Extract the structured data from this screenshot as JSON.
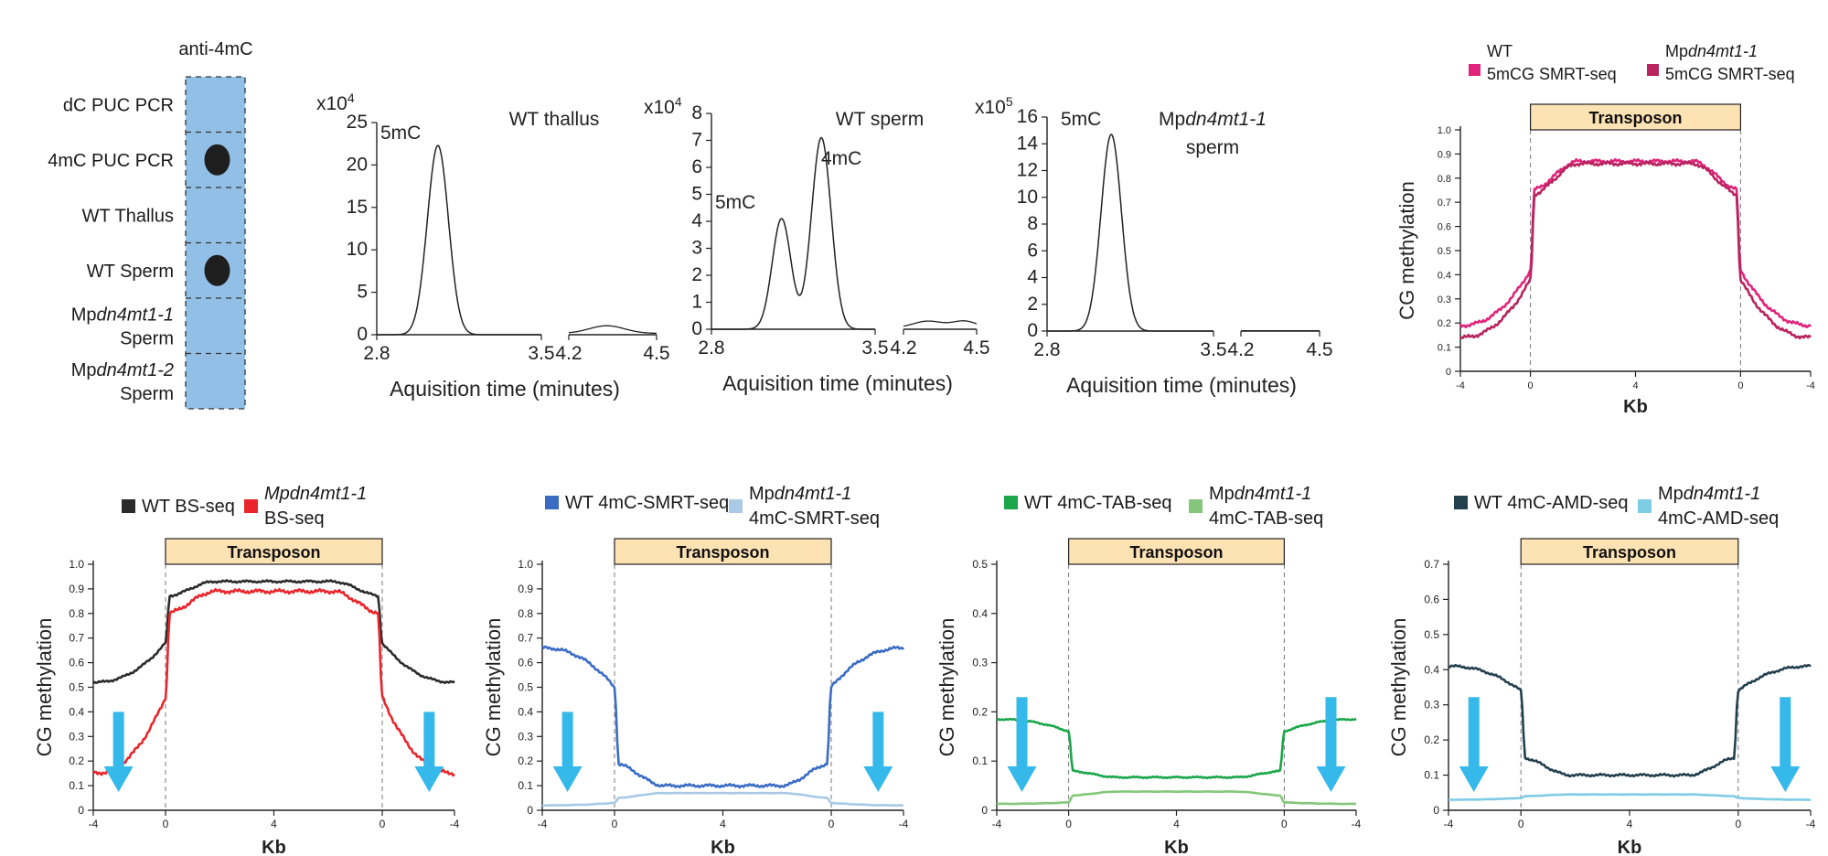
{
  "panel_a": {
    "title": "anti-4mC",
    "rows": [
      {
        "label_lines": [
          {
            "pre": "dC PUC PCR",
            "ital": "",
            "post": ""
          }
        ],
        "spot": false
      },
      {
        "label_lines": [
          {
            "pre": "4mC PUC PCR",
            "ital": "",
            "post": ""
          }
        ],
        "spot": true
      },
      {
        "label_lines": [
          {
            "pre": "WT Thallus",
            "ital": "",
            "post": ""
          }
        ],
        "spot": false
      },
      {
        "label_lines": [
          {
            "pre": "WT Sperm",
            "ital": "",
            "post": ""
          }
        ],
        "spot": true
      },
      {
        "label_lines": [
          {
            "pre": "Mp",
            "ital": "dn4mt1-1",
            "post": ""
          },
          {
            "pre": "Sperm",
            "ital": "",
            "post": ""
          }
        ],
        "spot": false
      },
      {
        "label_lines": [
          {
            "pre": "Mp",
            "ital": "dn4mt1-2",
            "post": ""
          },
          {
            "pre": "Sperm",
            "ital": "",
            "post": ""
          }
        ],
        "spot": false
      }
    ],
    "colors": {
      "membrane": "#92bfe6",
      "spot": "#1e1e1e"
    }
  },
  "chart_data": [
    {
      "type": "line",
      "panel": "LC-MS WT thallus",
      "title": "WT thallus",
      "multiplier": "x10",
      "multiplier_exp": "4",
      "xlabel": "Aquisition time (minutes)",
      "ylim": [
        0,
        25
      ],
      "yticks": [
        0,
        5,
        10,
        15,
        20,
        25
      ],
      "x_segments": [
        [
          2.8,
          3.5
        ],
        [
          4.2,
          4.5
        ]
      ],
      "xtick_labels": [
        "2.8",
        "3.5",
        "4.2",
        "4.5"
      ],
      "peaks": [
        {
          "x": 3.06,
          "y": 22.3,
          "width": 0.045
        }
      ],
      "segment2_bumps": [
        {
          "x": 4.33,
          "y": 0.9,
          "width": 0.06
        }
      ],
      "annotations": [
        {
          "text": "5mC",
          "color": "#e8394a"
        }
      ],
      "line_color": "#222222"
    },
    {
      "type": "line",
      "panel": "LC-MS WT sperm",
      "title": "WT sperm",
      "multiplier": "x10",
      "multiplier_exp": "4",
      "xlabel": "Aquisition time (minutes)",
      "ylim": [
        0,
        8
      ],
      "yticks": [
        0,
        1,
        2,
        3,
        4,
        5,
        6,
        7,
        8
      ],
      "x_segments": [
        [
          2.8,
          3.5
        ],
        [
          4.2,
          4.5
        ]
      ],
      "xtick_labels": [
        "2.8",
        "3.5",
        "4.2",
        "4.5"
      ],
      "peaks": [
        {
          "x": 3.1,
          "y": 4.1,
          "width": 0.04
        },
        {
          "x": 3.27,
          "y": 7.1,
          "width": 0.042
        }
      ],
      "segment2_bumps": [
        {
          "x": 4.3,
          "y": 0.25,
          "width": 0.06
        },
        {
          "x": 4.45,
          "y": 0.25,
          "width": 0.05
        }
      ],
      "annotations": [
        {
          "text": "5mC",
          "color": "#e8394a"
        },
        {
          "text": "4mC",
          "color": "#2d6cb5"
        }
      ],
      "line_color": "#222222"
    },
    {
      "type": "line",
      "panel": "LC-MS Mpdn4mt1-1 sperm",
      "title_pre": "Mp",
      "title_ital": "dn4mt1-1",
      "title_line2": "sperm",
      "multiplier": "x10",
      "multiplier_exp": "5",
      "xlabel": "Aquisition time (minutes)",
      "ylim": [
        0,
        16
      ],
      "yticks": [
        0,
        2,
        4,
        6,
        8,
        10,
        12,
        14,
        16
      ],
      "x_segments": [
        [
          2.8,
          3.5
        ],
        [
          4.2,
          4.5
        ]
      ],
      "xtick_labels": [
        "2.8",
        "3.5",
        "4.2",
        "4.5"
      ],
      "peaks": [
        {
          "x": 3.07,
          "y": 14.7,
          "width": 0.043
        }
      ],
      "segment2_bumps": [],
      "annotations": [
        {
          "text": "5mC",
          "color": "#e8394a"
        }
      ],
      "line_color": "#222222"
    },
    {
      "type": "line",
      "panel": "5mCG SMRT-seq metaplot",
      "ylabel": "CG methylation",
      "xlabel": "Kb",
      "transposon_label": "Transposon",
      "ylim": [
        0,
        1.0
      ],
      "yticks": [
        "0",
        "0.1",
        "0.2",
        "0.3",
        "0.4",
        "0.5",
        "0.6",
        "0.7",
        "0.8",
        "0.9",
        "1.0"
      ],
      "xtick_labels": [
        "-4",
        "0",
        "4",
        "0",
        "-4"
      ],
      "series": [
        {
          "name_line1": "WT",
          "name_line2": "5mCG SMRT-seq",
          "name_ital": "",
          "color": "#e0247c",
          "flank_out": 0.19,
          "flank_in": 0.42,
          "body_edge": 0.75,
          "body_mid": 0.87
        },
        {
          "name_line1": "Mp",
          "name_ital": "dn4mt1-1",
          "name_line2": "5mCG SMRT-seq",
          "color": "#b8245e",
          "flank_out": 0.14,
          "flank_in": 0.38,
          "body_edge": 0.73,
          "body_mid": 0.86
        }
      ],
      "arrows": false
    },
    {
      "type": "line",
      "panel": "BS-seq metaplot",
      "ylabel": "CG methylation",
      "xlabel": "Kb",
      "transposon_label": "Transposon",
      "ylim": [
        0,
        1.0
      ],
      "yticks": [
        "0",
        "0.1",
        "0.2",
        "0.3",
        "0.4",
        "0.5",
        "0.6",
        "0.7",
        "0.8",
        "0.9",
        "1.0"
      ],
      "xtick_labels": [
        "-4",
        "0",
        "4",
        "0",
        "-4"
      ],
      "series": [
        {
          "name_line1": "WT BS-seq",
          "name_ital": "",
          "name_line2": "",
          "color": "#2b2b2b",
          "flank_out": 0.52,
          "flank_in": 0.68,
          "body_edge": 0.87,
          "body_mid": 0.93
        },
        {
          "name_line1": "",
          "name_ital": "Mpdn4mt1-1",
          "name_line2": "BS-seq",
          "color": "#e8262b",
          "flank_out": 0.15,
          "flank_in": 0.46,
          "body_edge": 0.8,
          "body_mid": 0.89
        }
      ],
      "arrows": true
    },
    {
      "type": "line",
      "panel": "4mC-SMRT-seq metaplot",
      "ylabel": "CG methylation",
      "xlabel": "Kb",
      "transposon_label": "Transposon",
      "ylim": [
        0,
        1.0
      ],
      "yticks": [
        "0",
        "0.1",
        "0.2",
        "0.3",
        "0.4",
        "0.5",
        "0.6",
        "0.7",
        "0.8",
        "0.9",
        "1.0"
      ],
      "xtick_labels": [
        "-4",
        "0",
        "4",
        "0",
        "-4"
      ],
      "series": [
        {
          "name_line1": "WT 4mC-SMRT-seq",
          "name_ital": "",
          "name_line2": "",
          "color": "#3a6cc4",
          "flank_out": 0.66,
          "flank_in": 0.5,
          "body_edge": 0.19,
          "body_mid": 0.1
        },
        {
          "name_line1": "Mp",
          "name_ital": "dn4mt1-1",
          "name_line2": "4mC-SMRT-seq",
          "color": "#a9c9e6",
          "flank_out": 0.02,
          "flank_in": 0.03,
          "body_edge": 0.05,
          "body_mid": 0.07
        }
      ],
      "arrows": true
    },
    {
      "type": "line",
      "panel": "4mC-TAB-seq metaplot",
      "ylabel": "CG methylation",
      "xlabel": "Kb",
      "transposon_label": "Transposon",
      "ylim": [
        0,
        0.5
      ],
      "yticks": [
        "0",
        "0.1",
        "0.2",
        "0.3",
        "0.4",
        "0.5"
      ],
      "xtick_labels": [
        "-4",
        "0",
        "4",
        "0",
        "-4"
      ],
      "series": [
        {
          "name_line1": "WT 4mC-TAB-seq",
          "name_ital": "",
          "name_line2": "",
          "color": "#1aa64a",
          "flank_out": 0.185,
          "flank_in": 0.16,
          "body_edge": 0.08,
          "body_mid": 0.067
        },
        {
          "name_line1": "Mp",
          "name_ital": "dn4mt1-1",
          "name_line2": "4mC-TAB-seq",
          "color": "#84c77a",
          "flank_out": 0.013,
          "flank_in": 0.016,
          "body_edge": 0.03,
          "body_mid": 0.038
        }
      ],
      "arrows": true
    },
    {
      "type": "line",
      "panel": "4mC-AMD-seq metaplot",
      "ylabel": "CG methylation",
      "xlabel": "Kb",
      "transposon_label": "Transposon",
      "ylim": [
        0,
        0.7
      ],
      "yticks": [
        "0",
        "0.1",
        "0.2",
        "0.3",
        "0.4",
        "0.5",
        "0.6",
        "0.7"
      ],
      "xtick_labels": [
        "-4",
        "0",
        "4",
        "0",
        "-4"
      ],
      "series": [
        {
          "name_line1": "WT 4mC-AMD-seq",
          "name_ital": "",
          "name_line2": "",
          "color": "#23404f",
          "flank_out": 0.41,
          "flank_in": 0.34,
          "body_edge": 0.15,
          "body_mid": 0.1
        },
        {
          "name_line1": "Mp",
          "name_ital": "dn4mt1-1",
          "name_line2": "4mC-AMD-seq",
          "color": "#7fcce5",
          "flank_out": 0.03,
          "flank_in": 0.035,
          "body_edge": 0.04,
          "body_mid": 0.045
        }
      ],
      "arrows": true
    }
  ],
  "colors": {
    "transposon_fill": "#fde2b4",
    "arrow": "#35b8ea",
    "axis": "#222222"
  }
}
